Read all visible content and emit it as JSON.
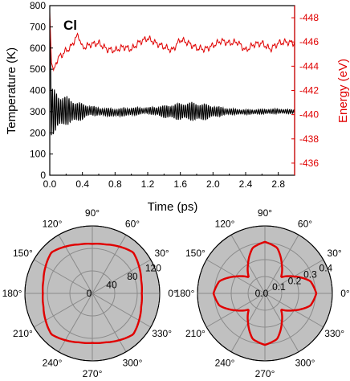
{
  "chart_data": [
    {
      "type": "line",
      "panel_label": "Cl",
      "xlabel": "Time (ps)",
      "ylabel_left": "Temperature (K)",
      "ylabel_right": "Energy (eV)",
      "xlim": [
        0,
        3.0
      ],
      "ylim_left": [
        0,
        800
      ],
      "ylim_right": [
        -435,
        -449
      ],
      "right_axis_inverted": true,
      "grid": false,
      "x_ticks": [
        "0.0",
        "0.4",
        "0.8",
        "1.2",
        "1.6",
        "2.0",
        "2.4",
        "2.8"
      ],
      "y_ticks_left": [
        "0",
        "100",
        "200",
        "300",
        "400",
        "500",
        "600",
        "700",
        "800"
      ],
      "y_ticks_right": [
        "-436",
        "-438",
        "-440",
        "-442",
        "-444",
        "-446",
        "-448"
      ],
      "colors": {
        "temperature": "#000000",
        "energy": "#e00000"
      },
      "series": [
        {
          "name": "",
          "axis": "left",
          "x": [
            0.0,
            0.02,
            0.05,
            0.08,
            0.12,
            0.2,
            0.3,
            0.4,
            0.5,
            0.6,
            0.8,
            1.0,
            1.2,
            1.4,
            1.55,
            1.7,
            1.85,
            2.0,
            2.2,
            2.4,
            2.6,
            2.8,
            2.95
          ],
          "center": [
            740,
            300,
            300,
            305,
            300,
            305,
            300,
            300,
            305,
            300,
            295,
            300,
            305,
            300,
            300,
            302,
            298,
            300,
            300,
            298,
            300,
            302,
            300
          ],
          "amplitude": [
            0,
            120,
            110,
            95,
            85,
            70,
            55,
            40,
            25,
            20,
            20,
            20,
            15,
            30,
            40,
            45,
            45,
            30,
            15,
            12,
            12,
            12,
            10
          ]
        },
        {
          "name": "",
          "axis": "right",
          "x": [
            0.0,
            0.02,
            0.05,
            0.08,
            0.12,
            0.16,
            0.2,
            0.25,
            0.3,
            0.35,
            0.4,
            0.5,
            0.6,
            0.7,
            0.8,
            0.9,
            1.0,
            1.1,
            1.2,
            1.3,
            1.4,
            1.5,
            1.6,
            1.7,
            1.8,
            1.9,
            2.0,
            2.1,
            2.2,
            2.3,
            2.4,
            2.5,
            2.6,
            2.7,
            2.8,
            2.9,
            3.0
          ],
          "y": [
            -448.5,
            -444.3,
            -443.6,
            -444.4,
            -444.8,
            -445.0,
            -445.3,
            -445.5,
            -446.1,
            -446.6,
            -445.5,
            -445.8,
            -445.9,
            -445.4,
            -445.3,
            -445.6,
            -445.4,
            -446.0,
            -446.3,
            -445.9,
            -445.6,
            -445.3,
            -446.2,
            -445.9,
            -445.5,
            -445.4,
            -445.7,
            -446.1,
            -445.9,
            -446.0,
            -445.3,
            -445.8,
            -445.9,
            -445.4,
            -445.9,
            -446.0,
            -445.9
          ]
        }
      ]
    },
    {
      "type": "polar",
      "angle_ticks": [
        "0°",
        "30°",
        "60°",
        "90°",
        "120°",
        "150°",
        "180°",
        "210°",
        "240°",
        "270°",
        "300°",
        "330°"
      ],
      "radial_ticks": [
        "0",
        "40",
        "80",
        "120"
      ],
      "rlim": [
        0,
        120
      ],
      "line_color": "#e00000",
      "background": "#c0c0c0",
      "angles_deg": [
        0,
        15,
        30,
        45,
        60,
        75,
        90,
        105,
        120,
        135,
        150,
        165,
        180,
        195,
        210,
        225,
        240,
        255,
        270,
        285,
        300,
        315,
        330,
        345
      ],
      "r": [
        88,
        90,
        96,
        103,
        96,
        90,
        88,
        90,
        96,
        103,
        96,
        90,
        88,
        90,
        96,
        103,
        96,
        90,
        88,
        90,
        96,
        103,
        96,
        90
      ]
    },
    {
      "type": "polar",
      "angle_ticks": [
        "0°",
        "30°",
        "60°",
        "90°",
        "120°",
        "150°",
        "180°",
        "210°",
        "240°",
        "270°",
        "300°",
        "330°"
      ],
      "radial_ticks": [
        "0.0",
        "0.1",
        "0.2",
        "0.3",
        "0.4"
      ],
      "rlim": [
        0,
        0.4
      ],
      "line_color": "#e00000",
      "background": "#c0c0c0",
      "angles_deg": [
        0,
        15,
        30,
        45,
        60,
        75,
        90,
        105,
        120,
        135,
        150,
        165,
        180,
        195,
        210,
        225,
        240,
        255,
        270,
        285,
        300,
        315,
        330,
        345
      ],
      "r": [
        0.305,
        0.28,
        0.2,
        0.135,
        0.2,
        0.28,
        0.305,
        0.28,
        0.2,
        0.135,
        0.2,
        0.28,
        0.305,
        0.28,
        0.2,
        0.135,
        0.2,
        0.28,
        0.305,
        0.28,
        0.2,
        0.135,
        0.2,
        0.28
      ]
    }
  ]
}
